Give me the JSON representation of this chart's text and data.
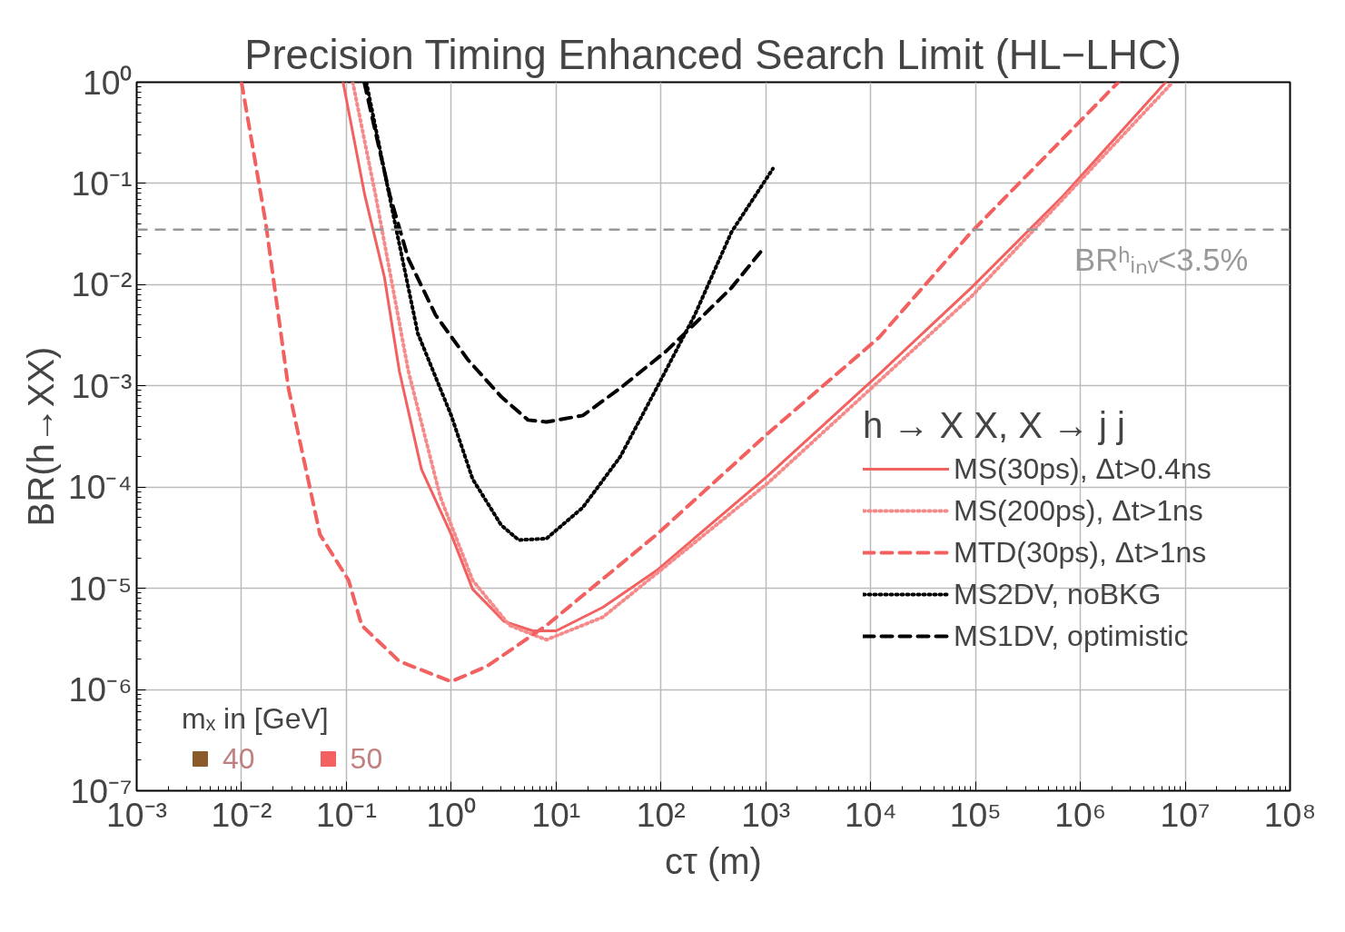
{
  "chart_data": {
    "type": "line",
    "title": "Precision Timing Enhanced Search Limit (HL−LHC)",
    "xlabel": "cτ (m)",
    "ylabel": "BR(h→XX)",
    "legend_title": "h → X X, X → j j",
    "log": "xy",
    "grid": true,
    "legend": "right",
    "xlim": [
      0.001,
      100000000
    ],
    "ylim": [
      1e-07,
      1
    ],
    "xticks": [
      {
        "value": 0.001,
        "label": "10⁻³"
      },
      {
        "value": 0.01,
        "label": "10⁻²"
      },
      {
        "value": 0.1,
        "label": "10⁻¹"
      },
      {
        "value": 1,
        "label": "10⁰"
      },
      {
        "value": 10,
        "label": "10¹"
      },
      {
        "value": 100,
        "label": "10²"
      },
      {
        "value": 1000,
        "label": "10³"
      },
      {
        "value": 10000,
        "label": "10⁴"
      },
      {
        "value": 100000,
        "label": "10⁵"
      },
      {
        "value": 1000000,
        "label": "10⁶"
      },
      {
        "value": 10000000,
        "label": "10⁷"
      },
      {
        "value": 100000000,
        "label": "10⁸"
      }
    ],
    "yticks": [
      {
        "value": 1e-07,
        "label": "10⁻⁷"
      },
      {
        "value": 1e-06,
        "label": "10⁻⁶"
      },
      {
        "value": 1e-05,
        "label": "10⁻⁵"
      },
      {
        "value": 0.0001,
        "label": "10⁻⁴"
      },
      {
        "value": 0.001,
        "label": "10⁻³"
      },
      {
        "value": 0.01,
        "label": "10⁻²"
      },
      {
        "value": 0.1,
        "label": "10⁻¹"
      },
      {
        "value": 1,
        "label": "10⁰"
      }
    ],
    "ref_lines": [
      {
        "axis": "y",
        "value": 0.035,
        "label": "BRʰᵢₙᵥ<3.5%",
        "color": "#999999",
        "line_style": "dashed"
      }
    ],
    "annotations": [
      "mₓ in [GeV]"
    ],
    "series": [
      {
        "name": "MS(30ps), Δt>0.4ns",
        "color": "#f26060",
        "line_style": "solid",
        "x": [
          0.093,
          0.15,
          0.23,
          0.32,
          0.52,
          1,
          1.6,
          3.2,
          6,
          10,
          28,
          91,
          1050,
          12000,
          91000,
          690000,
          6500000
        ],
        "values": [
          1,
          0.076,
          0.012,
          0.0014,
          0.00015,
          3.4e-05,
          9.8e-06,
          4.7e-06,
          3.8e-06,
          3.8e-06,
          6.5e-06,
          1.5e-05,
          0.00013,
          0.0013,
          0.0093,
          0.076,
          1
        ]
      },
      {
        "name": "MS(200ps), Δt>1ns",
        "color": "#f58a8a",
        "line_style": "dotted",
        "x": [
          0.115,
          0.19,
          0.39,
          0.79,
          1.6,
          3.6,
          8.1,
          28,
          1050,
          91000,
          7600000
        ],
        "values": [
          1,
          0.076,
          0.0014,
          7.9e-05,
          1.2e-05,
          4.3e-06,
          3.1e-06,
          5.2e-06,
          0.00011,
          0.0076,
          1
        ]
      },
      {
        "name": "MTD(30ps), Δt>1ns",
        "color": "#f26060",
        "line_style": "dashed",
        "x": [
          0.01,
          0.017,
          0.028,
          0.056,
          0.105,
          0.14,
          0.32,
          1,
          2.2,
          8.1,
          91,
          1050,
          12000,
          91000,
          2300000
        ],
        "values": [
          1,
          0.041,
          0.00095,
          3.4e-05,
          1.2e-05,
          4.3e-06,
          1.9e-06,
          1.2e-06,
          1.7e-06,
          4.3e-06,
          3.4e-05,
          0.00034,
          0.003,
          0.033,
          1
        ]
      },
      {
        "name": "MS2DV, noBKG",
        "color": "#000000",
        "line_style": "dotted",
        "x": [
          0.155,
          0.29,
          0.48,
          1,
          1.6,
          3,
          4.4,
          8.1,
          18,
          41,
          91,
          210,
          470,
          1170
        ],
        "values": [
          1,
          0.041,
          0.0033,
          0.00051,
          0.00012,
          4.2e-05,
          3e-05,
          3.1e-05,
          6.3e-05,
          0.0002,
          0.00095,
          0.005,
          0.033,
          0.14
        ]
      },
      {
        "name": "MS1DV, optimistic",
        "color": "#000000",
        "line_style": "dashed",
        "x": [
          0.148,
          0.26,
          0.39,
          0.71,
          1.45,
          3,
          5.4,
          8.1,
          18,
          41,
          112,
          210,
          470,
          890
        ],
        "values": [
          1,
          0.076,
          0.018,
          0.005,
          0.0018,
          0.00078,
          0.00046,
          0.00044,
          0.00051,
          0.00095,
          0.0022,
          0.0041,
          0.0093,
          0.021
        ]
      },
      {
        "name": "40",
        "type": "scatter",
        "marker": "square",
        "color": "#8b5a2b"
      },
      {
        "name": "50",
        "type": "scatter",
        "marker": "square",
        "color": "#f26060"
      }
    ]
  }
}
